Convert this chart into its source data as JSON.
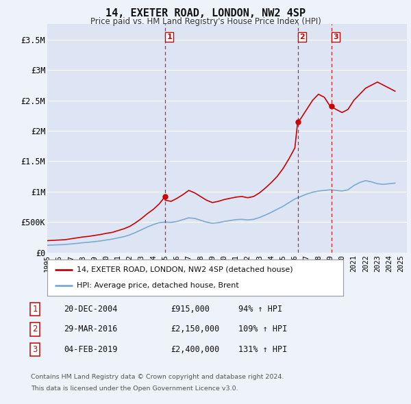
{
  "title": "14, EXETER ROAD, LONDON, NW2 4SP",
  "subtitle": "Price paid vs. HM Land Registry's House Price Index (HPI)",
  "ylabel_ticks": [
    "£0",
    "£500K",
    "£1M",
    "£1.5M",
    "£2M",
    "£2.5M",
    "£3M",
    "£3.5M"
  ],
  "ytick_values": [
    0,
    500000,
    1000000,
    1500000,
    2000000,
    2500000,
    3000000,
    3500000
  ],
  "ylim": [
    0,
    3750000
  ],
  "xlim_start": 1995.0,
  "xlim_end": 2025.5,
  "background_color": "#eef2fa",
  "plot_bg_color": "#dde5f5",
  "grid_color": "#ffffff",
  "red_line_color": "#cc0000",
  "blue_line_color": "#7aaad0",
  "transaction_line_color": "#cc0000",
  "transactions": [
    {
      "num": 1,
      "date": "20-DEC-2004",
      "price": "£915,000",
      "hpi_pct": "94%",
      "x": 2004.97
    },
    {
      "num": 2,
      "date": "29-MAR-2016",
      "price": "£2,150,000",
      "hpi_pct": "109%",
      "x": 2016.24
    },
    {
      "num": 3,
      "date": "04-FEB-2019",
      "price": "£2,400,000",
      "hpi_pct": "131%",
      "x": 2019.09
    }
  ],
  "transaction_prices": [
    915000,
    2150000,
    2400000
  ],
  "legend_label_red": "14, EXETER ROAD, LONDON, NW2 4SP (detached house)",
  "legend_label_blue": "HPI: Average price, detached house, Brent",
  "footer_line1": "Contains HM Land Registry data © Crown copyright and database right 2024.",
  "footer_line2": "This data is licensed under the Open Government Licence v3.0.",
  "red_x": [
    1995.0,
    1995.5,
    1996.0,
    1996.5,
    1997.0,
    1997.5,
    1998.0,
    1998.5,
    1999.0,
    1999.5,
    2000.0,
    2000.5,
    2001.0,
    2001.5,
    2002.0,
    2002.5,
    2003.0,
    2003.5,
    2004.0,
    2004.5,
    2004.97,
    2005.0,
    2005.5,
    2006.0,
    2006.5,
    2007.0,
    2007.5,
    2008.0,
    2008.5,
    2009.0,
    2009.5,
    2010.0,
    2010.5,
    2011.0,
    2011.5,
    2012.0,
    2012.5,
    2013.0,
    2013.5,
    2014.0,
    2014.5,
    2015.0,
    2015.5,
    2016.0,
    2016.24,
    2016.5,
    2017.0,
    2017.5,
    2018.0,
    2018.5,
    2019.0,
    2019.09,
    2019.5,
    2020.0,
    2020.5,
    2021.0,
    2021.5,
    2022.0,
    2022.5,
    2023.0,
    2023.5,
    2024.0,
    2024.5
  ],
  "red_y": [
    195000,
    200000,
    205000,
    210000,
    225000,
    240000,
    255000,
    265000,
    280000,
    295000,
    315000,
    330000,
    360000,
    390000,
    430000,
    490000,
    560000,
    640000,
    710000,
    800000,
    915000,
    860000,
    840000,
    890000,
    950000,
    1020000,
    980000,
    920000,
    860000,
    820000,
    840000,
    870000,
    890000,
    910000,
    920000,
    900000,
    920000,
    980000,
    1060000,
    1150000,
    1250000,
    1380000,
    1540000,
    1720000,
    2150000,
    2200000,
    2350000,
    2500000,
    2600000,
    2550000,
    2400000,
    2400000,
    2350000,
    2300000,
    2350000,
    2500000,
    2600000,
    2700000,
    2750000,
    2800000,
    2750000,
    2700000,
    2650000
  ],
  "blue_x": [
    1995.0,
    1995.5,
    1996.0,
    1996.5,
    1997.0,
    1997.5,
    1998.0,
    1998.5,
    1999.0,
    1999.5,
    2000.0,
    2000.5,
    2001.0,
    2001.5,
    2002.0,
    2002.5,
    2003.0,
    2003.5,
    2004.0,
    2004.5,
    2005.0,
    2005.5,
    2006.0,
    2006.5,
    2007.0,
    2007.5,
    2008.0,
    2008.5,
    2009.0,
    2009.5,
    2010.0,
    2010.5,
    2011.0,
    2011.5,
    2012.0,
    2012.5,
    2013.0,
    2013.5,
    2014.0,
    2014.5,
    2015.0,
    2015.5,
    2016.0,
    2016.5,
    2017.0,
    2017.5,
    2018.0,
    2018.5,
    2019.0,
    2019.5,
    2020.0,
    2020.5,
    2021.0,
    2021.5,
    2022.0,
    2022.5,
    2023.0,
    2023.5,
    2024.0,
    2024.5
  ],
  "blue_y": [
    120000,
    123000,
    127000,
    132000,
    140000,
    150000,
    160000,
    168000,
    178000,
    190000,
    205000,
    220000,
    240000,
    260000,
    290000,
    330000,
    375000,
    420000,
    460000,
    490000,
    500000,
    495000,
    510000,
    540000,
    570000,
    560000,
    530000,
    500000,
    480000,
    490000,
    510000,
    525000,
    540000,
    545000,
    535000,
    545000,
    575000,
    615000,
    660000,
    710000,
    760000,
    820000,
    880000,
    920000,
    960000,
    990000,
    1010000,
    1020000,
    1030000,
    1020000,
    1010000,
    1030000,
    1100000,
    1150000,
    1180000,
    1160000,
    1130000,
    1120000,
    1130000,
    1140000
  ]
}
